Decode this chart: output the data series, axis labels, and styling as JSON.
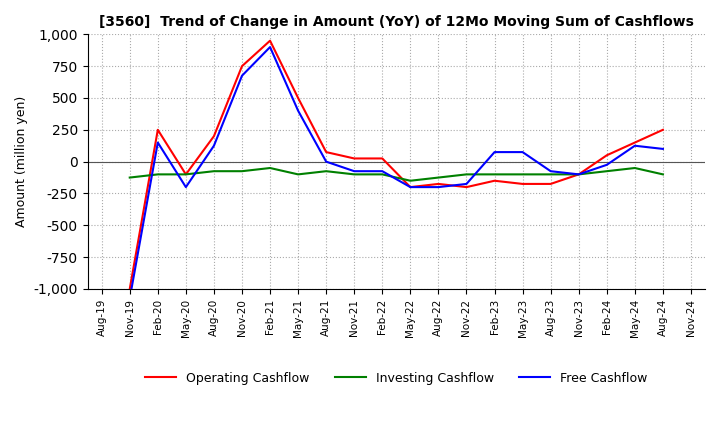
{
  "title": "[3560]  Trend of Change in Amount (YoY) of 12Mo Moving Sum of Cashflows",
  "ylabel": "Amount (million yen)",
  "ylim": [
    -1000,
    1000
  ],
  "yticks": [
    -1000,
    -750,
    -500,
    -250,
    0,
    250,
    500,
    750,
    1000
  ],
  "x_labels": [
    "Aug-19",
    "Nov-19",
    "Feb-20",
    "May-20",
    "Aug-20",
    "Nov-20",
    "Feb-21",
    "May-21",
    "Aug-21",
    "Nov-21",
    "Feb-22",
    "May-22",
    "Aug-22",
    "Nov-22",
    "Feb-23",
    "May-23",
    "Aug-23",
    "Nov-23",
    "Feb-24",
    "May-24",
    "Aug-24",
    "Nov-24"
  ],
  "operating": [
    null,
    -1000,
    250,
    -100,
    200,
    750,
    950,
    500,
    75,
    25,
    25,
    -200,
    -175,
    -200,
    -150,
    -175,
    -175,
    -100,
    50,
    150,
    250,
    null
  ],
  "investing": [
    null,
    -125,
    -100,
    -100,
    -75,
    -75,
    -50,
    -100,
    -75,
    -100,
    -100,
    -150,
    -125,
    -100,
    -100,
    -100,
    -100,
    -100,
    -75,
    -50,
    -100,
    null
  ],
  "free": [
    null,
    -1075,
    150,
    -200,
    125,
    675,
    900,
    400,
    0,
    -75,
    -75,
    -200,
    -200,
    -175,
    75,
    75,
    -75,
    -100,
    -25,
    125,
    100,
    null
  ],
  "line_colors": {
    "operating": "#ff0000",
    "investing": "#008000",
    "free": "#0000ff"
  },
  "legend_labels": [
    "Operating Cashflow",
    "Investing Cashflow",
    "Free Cashflow"
  ],
  "background_color": "#ffffff",
  "grid_color": "#aaaaaa"
}
